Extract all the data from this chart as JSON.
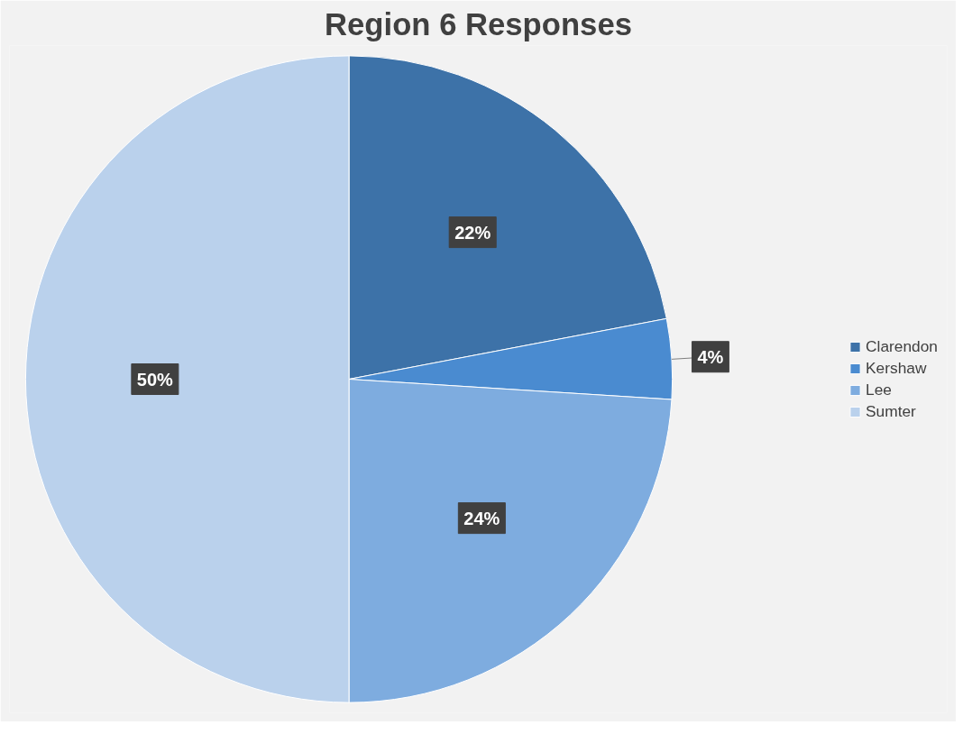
{
  "chart_data": {
    "type": "pie",
    "title": "Region 6 Responses",
    "categories": [
      "Clarendon",
      "Kershaw",
      "Lee",
      "Sumter"
    ],
    "values": [
      22,
      4,
      24,
      50
    ],
    "colors": [
      "#3d72a8",
      "#4a8bd0",
      "#7eacdf",
      "#bad1ec"
    ],
    "value_labels": [
      "22%",
      "4%",
      "24%",
      "50%"
    ],
    "legend": "right"
  }
}
